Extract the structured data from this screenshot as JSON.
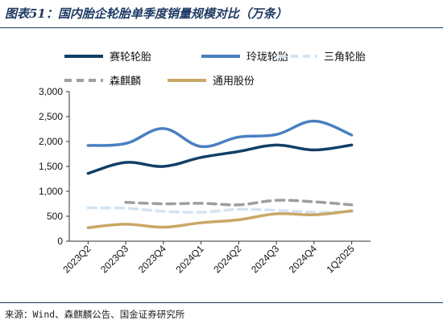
{
  "header": {
    "title": "图表51：国内胎企轮胎单季度销量规模对比（万条）"
  },
  "footer": {
    "source": "来源：Wind、森麒麟公告、国金证券研究所"
  },
  "chart_data": {
    "type": "line",
    "categories": [
      "2023Q2",
      "2023Q3",
      "2023Q4",
      "2024Q1",
      "2024Q2",
      "2024Q3",
      "2024Q4",
      "1Q2025"
    ],
    "ylim": [
      0,
      3000
    ],
    "yticks": [
      0,
      500,
      1000,
      1500,
      2000,
      2500,
      3000
    ],
    "ytick_labels": [
      "0",
      "500",
      "1,000",
      "1,500",
      "2,000",
      "2,500",
      "3,000"
    ],
    "grid": false,
    "legend_position": "top",
    "series": [
      {
        "name": "赛轮轮胎",
        "color": "#123f66",
        "dash": "solid",
        "values": [
          1360,
          1580,
          1500,
          1680,
          1800,
          1930,
          1830,
          1930
        ]
      },
      {
        "name": "玲珑轮胎",
        "color": "#4a7fc1",
        "dash": "solid",
        "values": [
          1920,
          1960,
          2260,
          1900,
          2090,
          2140,
          2410,
          2130
        ]
      },
      {
        "name": "三角轮胎",
        "color": "#d2e3f2",
        "dash": "dashed",
        "values": [
          670,
          660,
          600,
          580,
          640,
          620,
          580,
          590
        ]
      },
      {
        "name": "森麒麟",
        "color": "#9e9e9e",
        "dash": "dashed",
        "values": [
          null,
          780,
          750,
          760,
          730,
          820,
          790,
          730
        ]
      },
      {
        "name": "通用股份",
        "color": "#c9a766",
        "dash": "solid",
        "values": [
          270,
          340,
          280,
          370,
          430,
          550,
          530,
          610
        ]
      }
    ]
  }
}
